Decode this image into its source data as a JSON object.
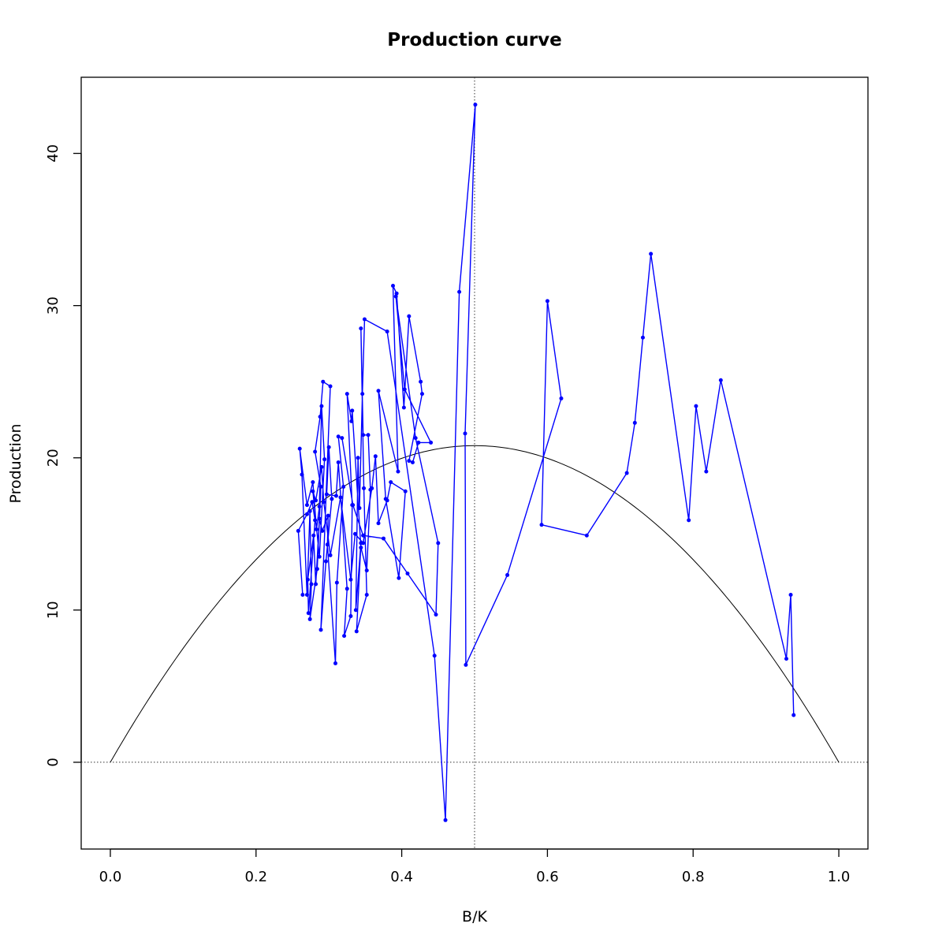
{
  "chart_data": {
    "type": "line",
    "title": "Production curve",
    "xlabel": "B/K",
    "ylabel": "Production",
    "xlim": [
      -0.04,
      1.04
    ],
    "ylim": [
      -5.7,
      45.0
    ],
    "x_ticks": [
      0.0,
      0.2,
      0.4,
      0.6,
      0.8,
      1.0
    ],
    "x_tick_labels": [
      "0.0",
      "0.2",
      "0.4",
      "0.6",
      "0.8",
      "1.0"
    ],
    "y_ticks": [
      0,
      10,
      20,
      30,
      40
    ],
    "y_tick_labels": [
      "0",
      "10",
      "20",
      "30",
      "40"
    ],
    "reference_lines": {
      "vertical_x": 0.5,
      "horizontal_y": 0,
      "style": "dotted"
    },
    "model_curve": {
      "form": "parabola",
      "color": "#000000",
      "peak_x": 0.5,
      "peak_y": 20.8,
      "x_range": [
        0,
        1
      ]
    },
    "series": [
      {
        "color": "#0000ff",
        "style": "line-with-points",
        "points": [
          [
            0.938,
            3.1
          ],
          [
            0.934,
            11.0
          ],
          [
            0.928,
            6.8
          ],
          [
            0.838,
            25.1
          ],
          [
            0.818,
            19.1
          ],
          [
            0.804,
            23.4
          ],
          [
            0.794,
            15.9
          ],
          [
            0.742,
            33.4
          ],
          [
            0.731,
            27.9
          ],
          [
            0.72,
            22.3
          ],
          [
            0.709,
            19.0
          ],
          [
            0.654,
            14.9
          ],
          [
            0.592,
            15.6
          ],
          [
            0.6,
            30.3
          ],
          [
            0.619,
            23.9
          ],
          [
            0.545,
            12.3
          ],
          [
            0.488,
            6.4
          ],
          [
            0.487,
            21.6
          ],
          [
            0.501,
            43.2
          ],
          [
            0.479,
            30.9
          ],
          [
            0.46,
            -3.8
          ],
          [
            0.445,
            7.0
          ],
          [
            0.38,
            28.3
          ],
          [
            0.349,
            29.1
          ],
          [
            0.346,
            24.2
          ],
          [
            0.342,
            16.7
          ],
          [
            0.34,
            20.0
          ],
          [
            0.337,
            10.0
          ],
          [
            0.344,
            14.4
          ],
          [
            0.338,
            8.6
          ],
          [
            0.352,
            11.0
          ],
          [
            0.348,
            18.0
          ],
          [
            0.344,
            28.5
          ],
          [
            0.347,
            21.5
          ],
          [
            0.354,
            21.5
          ],
          [
            0.357,
            17.9
          ],
          [
            0.352,
            12.6
          ],
          [
            0.344,
            14.1
          ],
          [
            0.332,
            23.1
          ],
          [
            0.331,
            22.4
          ],
          [
            0.325,
            24.2
          ],
          [
            0.332,
            16.9
          ],
          [
            0.33,
            9.6
          ],
          [
            0.321,
            8.3
          ],
          [
            0.325,
            11.4
          ],
          [
            0.313,
            19.7
          ],
          [
            0.31,
            17.5
          ],
          [
            0.297,
            17.6
          ],
          [
            0.3,
            20.7
          ],
          [
            0.304,
            17.3
          ],
          [
            0.296,
            13.2
          ],
          [
            0.289,
            8.7
          ],
          [
            0.302,
            24.7
          ],
          [
            0.292,
            25.0
          ],
          [
            0.288,
            22.7
          ],
          [
            0.281,
            20.4
          ],
          [
            0.289,
            18.1
          ],
          [
            0.284,
            12.7
          ],
          [
            0.274,
            9.4
          ],
          [
            0.276,
            11.7
          ],
          [
            0.274,
            16.5
          ],
          [
            0.27,
            11.0
          ],
          [
            0.263,
            18.9
          ],
          [
            0.26,
            20.6
          ],
          [
            0.27,
            16.9
          ],
          [
            0.278,
            18.4
          ],
          [
            0.283,
            15.3
          ],
          [
            0.287,
            16.8
          ],
          [
            0.29,
            23.4
          ],
          [
            0.294,
            19.9
          ],
          [
            0.287,
            13.5
          ],
          [
            0.278,
            17.8
          ],
          [
            0.282,
            17.2
          ],
          [
            0.29,
            19.4
          ],
          [
            0.293,
            17.1
          ],
          [
            0.302,
            13.6
          ],
          [
            0.316,
            17.4
          ],
          [
            0.33,
            12.0
          ],
          [
            0.336,
            15.0
          ],
          [
            0.347,
            14.4
          ],
          [
            0.359,
            18.0
          ],
          [
            0.364,
            20.1
          ],
          [
            0.368,
            15.7
          ],
          [
            0.38,
            17.2
          ],
          [
            0.385,
            18.4
          ],
          [
            0.405,
            17.8
          ],
          [
            0.396,
            12.1
          ],
          [
            0.378,
            17.3
          ],
          [
            0.368,
            24.4
          ],
          [
            0.395,
            19.1
          ],
          [
            0.388,
            31.3
          ],
          [
            0.393,
            30.8
          ],
          [
            0.403,
            23.3
          ],
          [
            0.41,
            29.3
          ],
          [
            0.426,
            25.0
          ],
          [
            0.428,
            24.2
          ],
          [
            0.41,
            19.8
          ],
          [
            0.415,
            19.7
          ],
          [
            0.423,
            21.0
          ],
          [
            0.44,
            21.0
          ],
          [
            0.404,
            24.5
          ],
          [
            0.392,
            30.6
          ],
          [
            0.419,
            21.3
          ],
          [
            0.45,
            14.4
          ],
          [
            0.447,
            9.7
          ],
          [
            0.408,
            12.4
          ],
          [
            0.375,
            14.7
          ],
          [
            0.347,
            14.9
          ],
          [
            0.333,
            16.9
          ],
          [
            0.318,
            21.3
          ],
          [
            0.313,
            21.4
          ],
          [
            0.32,
            18.1
          ],
          [
            0.311,
            11.8
          ],
          [
            0.309,
            6.5
          ],
          [
            0.298,
            14.3
          ],
          [
            0.299,
            16.2
          ],
          [
            0.291,
            15.2
          ],
          [
            0.287,
            16.0
          ],
          [
            0.282,
            11.7
          ],
          [
            0.279,
            14.9
          ],
          [
            0.271,
            12.0
          ],
          [
            0.272,
            9.8
          ],
          [
            0.281,
            15.9
          ],
          [
            0.277,
            17.1
          ],
          [
            0.27,
            16.3
          ],
          [
            0.258,
            15.2
          ],
          [
            0.264,
            11.0
          ]
        ]
      }
    ]
  }
}
